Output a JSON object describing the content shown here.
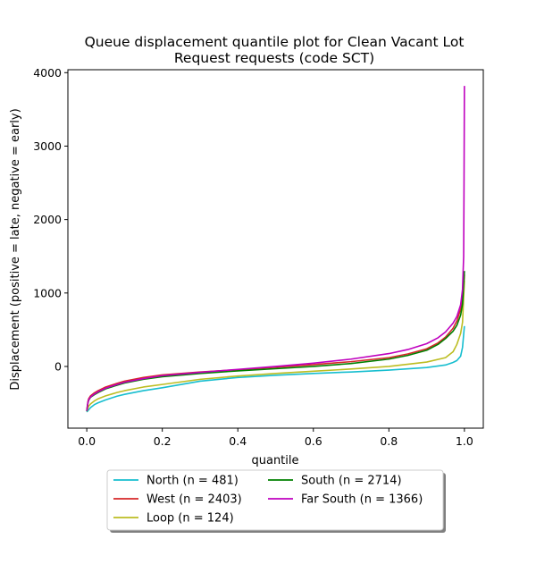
{
  "chart_data": {
    "type": "line",
    "title_lines": [
      "Queue displacement quantile plot for Clean Vacant Lot",
      "Request  requests (code SCT)"
    ],
    "xlabel": "quantile",
    "ylabel": "Displacement (positive = late, negative = early)",
    "xlim": [
      -0.05,
      1.05
    ],
    "ylim": [
      -840,
      4040
    ],
    "x_ticks": [
      0.0,
      0.2,
      0.4,
      0.6,
      0.8,
      1.0
    ],
    "x_tick_labels": [
      "0.0",
      "0.2",
      "0.4",
      "0.6",
      "0.8",
      "1.0"
    ],
    "y_ticks": [
      0,
      1000,
      2000,
      3000,
      4000
    ],
    "y_tick_labels": [
      "0",
      "1000",
      "2000",
      "3000",
      "4000"
    ],
    "grid": false,
    "legend_position": "below-center",
    "series": [
      {
        "name": "North (n = 481)",
        "color": "#17becf",
        "x": [
          0.0,
          0.005,
          0.01,
          0.02,
          0.03,
          0.05,
          0.08,
          0.1,
          0.15,
          0.2,
          0.3,
          0.4,
          0.5,
          0.6,
          0.7,
          0.8,
          0.9,
          0.95,
          0.97,
          0.98,
          0.99,
          0.995,
          1.0
        ],
        "values": [
          -620,
          -590,
          -560,
          -520,
          -495,
          -455,
          -405,
          -380,
          -330,
          -290,
          -200,
          -150,
          -120,
          -95,
          -75,
          -50,
          -15,
          20,
          55,
          80,
          140,
          260,
          550
        ]
      },
      {
        "name": "West (n = 2403)",
        "color": "#d62728",
        "x": [
          0.0,
          0.003,
          0.005,
          0.01,
          0.02,
          0.03,
          0.05,
          0.08,
          0.1,
          0.15,
          0.2,
          0.3,
          0.4,
          0.5,
          0.6,
          0.7,
          0.8,
          0.85,
          0.9,
          0.93,
          0.95,
          0.97,
          0.98,
          0.99,
          0.995,
          0.998,
          1.0
        ],
        "values": [
          -600,
          -480,
          -440,
          -400,
          -360,
          -330,
          -280,
          -230,
          -200,
          -150,
          -115,
          -75,
          -45,
          -10,
          25,
          65,
          120,
          170,
          240,
          320,
          400,
          520,
          620,
          780,
          920,
          1080,
          1250
        ]
      },
      {
        "name": "Loop (n = 124)",
        "color": "#bcbd22",
        "x": [
          0.0,
          0.005,
          0.01,
          0.02,
          0.03,
          0.05,
          0.08,
          0.1,
          0.15,
          0.2,
          0.3,
          0.4,
          0.5,
          0.6,
          0.7,
          0.8,
          0.9,
          0.95,
          0.97,
          0.98,
          0.99,
          0.995,
          1.0
        ],
        "values": [
          -610,
          -540,
          -510,
          -470,
          -440,
          -400,
          -355,
          -330,
          -280,
          -245,
          -175,
          -130,
          -95,
          -65,
          -35,
          0,
          60,
          120,
          200,
          300,
          450,
          600,
          1170
        ]
      },
      {
        "name": "South (n = 2714)",
        "color": "#008000",
        "x": [
          0.0,
          0.003,
          0.005,
          0.01,
          0.02,
          0.03,
          0.05,
          0.08,
          0.1,
          0.15,
          0.2,
          0.3,
          0.4,
          0.5,
          0.6,
          0.7,
          0.8,
          0.85,
          0.9,
          0.93,
          0.95,
          0.97,
          0.98,
          0.99,
          0.995,
          1.0
        ],
        "values": [
          -610,
          -500,
          -460,
          -420,
          -385,
          -355,
          -305,
          -255,
          -225,
          -175,
          -140,
          -95,
          -60,
          -30,
          0,
          40,
          100,
          150,
          220,
          300,
          380,
          480,
          560,
          700,
          850,
          1300
        ]
      },
      {
        "name": "Far South (n = 1366)",
        "color": "#bf00bf",
        "x": [
          0.0,
          0.003,
          0.005,
          0.01,
          0.02,
          0.03,
          0.05,
          0.08,
          0.1,
          0.15,
          0.2,
          0.3,
          0.4,
          0.5,
          0.6,
          0.7,
          0.8,
          0.85,
          0.9,
          0.93,
          0.95,
          0.97,
          0.98,
          0.99,
          0.995,
          0.998,
          0.999,
          1.0
        ],
        "values": [
          -605,
          -495,
          -455,
          -415,
          -375,
          -345,
          -295,
          -245,
          -215,
          -165,
          -125,
          -80,
          -40,
          0,
          45,
          100,
          175,
          230,
          310,
          390,
          470,
          590,
          680,
          840,
          1050,
          1500,
          2500,
          3820
        ]
      }
    ]
  }
}
